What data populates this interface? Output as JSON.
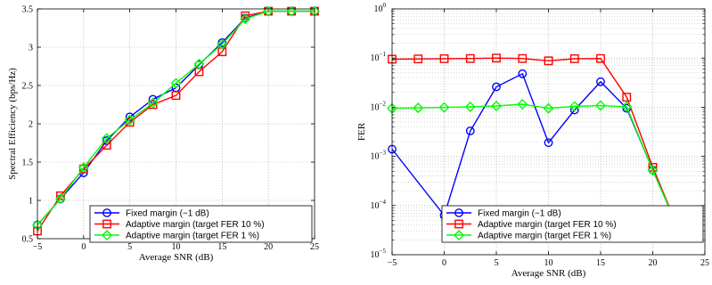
{
  "chart_data": [
    {
      "type": "line",
      "xlabel": "Average SNR (dB)",
      "ylabel": "Spectral Efficiency (bps/Hz)",
      "xlim": [
        -5,
        25
      ],
      "ylim": [
        0.5,
        3.5
      ],
      "xticks": [
        "-5",
        "0",
        "5",
        "10",
        "15",
        "20",
        "25"
      ],
      "yticks": [
        "0.5",
        "1",
        "1.5",
        "2",
        "2.5",
        "3",
        "3.5"
      ],
      "grid": true,
      "legend_position": "bottom-right",
      "x": [
        -5,
        -2.5,
        0,
        2.5,
        5,
        7.5,
        10,
        12.5,
        15,
        17.5,
        20,
        22.5,
        25
      ],
      "series": [
        {
          "name": "Fixed margin (−1 dB)",
          "color": "#0000ff",
          "marker": "circle",
          "values": [
            0.68,
            1.02,
            1.36,
            1.78,
            2.09,
            2.32,
            2.47,
            2.77,
            3.06,
            3.38,
            3.47,
            3.47,
            3.47
          ]
        },
        {
          "name": "Adaptive margin (target FER 10 %)",
          "color": "#ff0000",
          "marker": "square",
          "values": [
            0.6,
            1.06,
            1.41,
            1.72,
            2.02,
            2.25,
            2.37,
            2.68,
            2.94,
            3.41,
            3.47,
            3.47,
            3.47
          ]
        },
        {
          "name": "Adaptive margin (target FER 1 %)",
          "color": "#00ff00",
          "marker": "diamond",
          "values": [
            0.68,
            1.02,
            1.43,
            1.81,
            2.05,
            2.27,
            2.53,
            2.78,
            3.04,
            3.37,
            3.47,
            3.47,
            3.47
          ]
        }
      ]
    },
    {
      "type": "line",
      "xlabel": "Average SNR (dB)",
      "ylabel": "FER",
      "xlim": [
        -5,
        25
      ],
      "ylim": [
        1e-05,
        1
      ],
      "yscale": "log",
      "xticks": [
        "-5",
        "0",
        "5",
        "10",
        "15",
        "20",
        "25"
      ],
      "yticks": [
        {
          "base": "10",
          "exp": "0"
        },
        {
          "base": "10",
          "exp": "-1"
        },
        {
          "base": "10",
          "exp": "-2"
        },
        {
          "base": "10",
          "exp": "-3"
        },
        {
          "base": "10",
          "exp": "-4"
        },
        {
          "base": "10",
          "exp": "-5"
        }
      ],
      "grid": true,
      "legend_position": "bottom-right",
      "series": [
        {
          "name": "Fixed margin (−1 dB)",
          "color": "#0000ff",
          "marker": "circle",
          "x": [
            -5,
            0,
            2.5,
            5,
            7.5,
            10,
            12.5,
            15,
            17.5,
            20,
            22.5
          ],
          "values": [
            0.0014,
            6.3e-05,
            0.0033,
            0.026,
            0.048,
            0.0019,
            0.0088,
            0.033,
            0.0095,
            0.00053,
            3.2e-05
          ]
        },
        {
          "name": "Adaptive margin (target FER 10 %)",
          "color": "#ff0000",
          "marker": "square",
          "x": [
            -5,
            -2.5,
            0,
            2.5,
            5,
            7.5,
            10,
            12.5,
            15,
            17.5,
            20,
            22.5
          ],
          "values": [
            0.095,
            0.096,
            0.097,
            0.098,
            0.1,
            0.098,
            0.088,
            0.097,
            0.098,
            0.016,
            0.0006,
            3.2e-05
          ]
        },
        {
          "name": "Adaptive margin (target FER 1 %)",
          "color": "#00ff00",
          "marker": "diamond",
          "x": [
            -5,
            -2.5,
            0,
            2.5,
            5,
            7.5,
            10,
            12.5,
            15,
            17.5,
            20,
            22.5
          ],
          "values": [
            0.0095,
            0.0097,
            0.0099,
            0.0102,
            0.0106,
            0.0115,
            0.0095,
            0.0104,
            0.0108,
            0.0102,
            0.00052,
            3.2e-05
          ]
        }
      ]
    }
  ]
}
